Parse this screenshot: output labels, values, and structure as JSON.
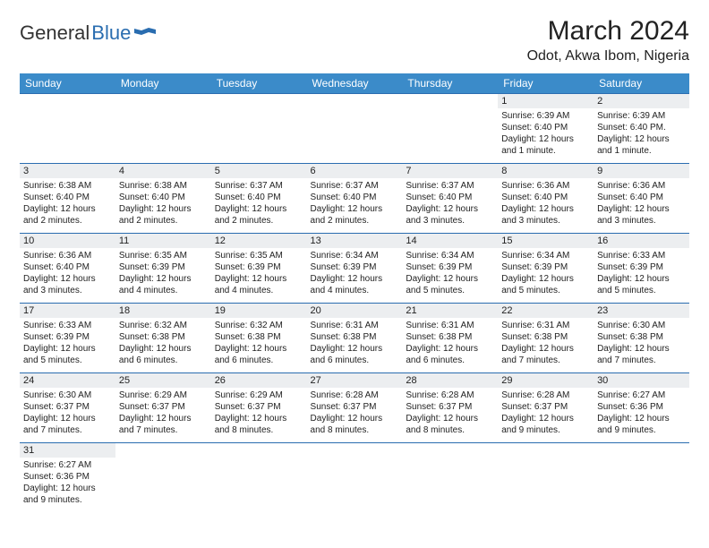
{
  "logo": {
    "part1": "General",
    "part2": "Blue"
  },
  "title": "March 2024",
  "location": "Odot, Akwa Ibom, Nigeria",
  "colors": {
    "header_bg": "#3b8bc9",
    "header_text": "#ffffff",
    "border": "#2a6db0",
    "daynum_bg": "#eceef0",
    "text": "#222222",
    "logo_blue": "#2a6db0"
  },
  "days": [
    "Sunday",
    "Monday",
    "Tuesday",
    "Wednesday",
    "Thursday",
    "Friday",
    "Saturday"
  ],
  "weeks": [
    [
      null,
      null,
      null,
      null,
      null,
      {
        "n": "1",
        "sr": "Sunrise: 6:39 AM",
        "ss": "Sunset: 6:40 PM",
        "dl": "Daylight: 12 hours and 1 minute."
      },
      {
        "n": "2",
        "sr": "Sunrise: 6:39 AM",
        "ss": "Sunset: 6:40 PM.",
        "dl": "Daylight: 12 hours and 1 minute."
      }
    ],
    [
      {
        "n": "3",
        "sr": "Sunrise: 6:38 AM",
        "ss": "Sunset: 6:40 PM",
        "dl": "Daylight: 12 hours and 2 minutes."
      },
      {
        "n": "4",
        "sr": "Sunrise: 6:38 AM",
        "ss": "Sunset: 6:40 PM",
        "dl": "Daylight: 12 hours and 2 minutes."
      },
      {
        "n": "5",
        "sr": "Sunrise: 6:37 AM",
        "ss": "Sunset: 6:40 PM",
        "dl": "Daylight: 12 hours and 2 minutes."
      },
      {
        "n": "6",
        "sr": "Sunrise: 6:37 AM",
        "ss": "Sunset: 6:40 PM",
        "dl": "Daylight: 12 hours and 2 minutes."
      },
      {
        "n": "7",
        "sr": "Sunrise: 6:37 AM",
        "ss": "Sunset: 6:40 PM",
        "dl": "Daylight: 12 hours and 3 minutes."
      },
      {
        "n": "8",
        "sr": "Sunrise: 6:36 AM",
        "ss": "Sunset: 6:40 PM",
        "dl": "Daylight: 12 hours and 3 minutes."
      },
      {
        "n": "9",
        "sr": "Sunrise: 6:36 AM",
        "ss": "Sunset: 6:40 PM",
        "dl": "Daylight: 12 hours and 3 minutes."
      }
    ],
    [
      {
        "n": "10",
        "sr": "Sunrise: 6:36 AM",
        "ss": "Sunset: 6:40 PM",
        "dl": "Daylight: 12 hours and 3 minutes."
      },
      {
        "n": "11",
        "sr": "Sunrise: 6:35 AM",
        "ss": "Sunset: 6:39 PM",
        "dl": "Daylight: 12 hours and 4 minutes."
      },
      {
        "n": "12",
        "sr": "Sunrise: 6:35 AM",
        "ss": "Sunset: 6:39 PM",
        "dl": "Daylight: 12 hours and 4 minutes."
      },
      {
        "n": "13",
        "sr": "Sunrise: 6:34 AM",
        "ss": "Sunset: 6:39 PM",
        "dl": "Daylight: 12 hours and 4 minutes."
      },
      {
        "n": "14",
        "sr": "Sunrise: 6:34 AM",
        "ss": "Sunset: 6:39 PM",
        "dl": "Daylight: 12 hours and 5 minutes."
      },
      {
        "n": "15",
        "sr": "Sunrise: 6:34 AM",
        "ss": "Sunset: 6:39 PM",
        "dl": "Daylight: 12 hours and 5 minutes."
      },
      {
        "n": "16",
        "sr": "Sunrise: 6:33 AM",
        "ss": "Sunset: 6:39 PM",
        "dl": "Daylight: 12 hours and 5 minutes."
      }
    ],
    [
      {
        "n": "17",
        "sr": "Sunrise: 6:33 AM",
        "ss": "Sunset: 6:39 PM",
        "dl": "Daylight: 12 hours and 5 minutes."
      },
      {
        "n": "18",
        "sr": "Sunrise: 6:32 AM",
        "ss": "Sunset: 6:38 PM",
        "dl": "Daylight: 12 hours and 6 minutes."
      },
      {
        "n": "19",
        "sr": "Sunrise: 6:32 AM",
        "ss": "Sunset: 6:38 PM",
        "dl": "Daylight: 12 hours and 6 minutes."
      },
      {
        "n": "20",
        "sr": "Sunrise: 6:31 AM",
        "ss": "Sunset: 6:38 PM",
        "dl": "Daylight: 12 hours and 6 minutes."
      },
      {
        "n": "21",
        "sr": "Sunrise: 6:31 AM",
        "ss": "Sunset: 6:38 PM",
        "dl": "Daylight: 12 hours and 6 minutes."
      },
      {
        "n": "22",
        "sr": "Sunrise: 6:31 AM",
        "ss": "Sunset: 6:38 PM",
        "dl": "Daylight: 12 hours and 7 minutes."
      },
      {
        "n": "23",
        "sr": "Sunrise: 6:30 AM",
        "ss": "Sunset: 6:38 PM",
        "dl": "Daylight: 12 hours and 7 minutes."
      }
    ],
    [
      {
        "n": "24",
        "sr": "Sunrise: 6:30 AM",
        "ss": "Sunset: 6:37 PM",
        "dl": "Daylight: 12 hours and 7 minutes."
      },
      {
        "n": "25",
        "sr": "Sunrise: 6:29 AM",
        "ss": "Sunset: 6:37 PM",
        "dl": "Daylight: 12 hours and 7 minutes."
      },
      {
        "n": "26",
        "sr": "Sunrise: 6:29 AM",
        "ss": "Sunset: 6:37 PM",
        "dl": "Daylight: 12 hours and 8 minutes."
      },
      {
        "n": "27",
        "sr": "Sunrise: 6:28 AM",
        "ss": "Sunset: 6:37 PM",
        "dl": "Daylight: 12 hours and 8 minutes."
      },
      {
        "n": "28",
        "sr": "Sunrise: 6:28 AM",
        "ss": "Sunset: 6:37 PM",
        "dl": "Daylight: 12 hours and 8 minutes."
      },
      {
        "n": "29",
        "sr": "Sunrise: 6:28 AM",
        "ss": "Sunset: 6:37 PM",
        "dl": "Daylight: 12 hours and 9 minutes."
      },
      {
        "n": "30",
        "sr": "Sunrise: 6:27 AM",
        "ss": "Sunset: 6:36 PM",
        "dl": "Daylight: 12 hours and 9 minutes."
      }
    ],
    [
      {
        "n": "31",
        "sr": "Sunrise: 6:27 AM",
        "ss": "Sunset: 6:36 PM",
        "dl": "Daylight: 12 hours and 9 minutes."
      },
      null,
      null,
      null,
      null,
      null,
      null
    ]
  ]
}
